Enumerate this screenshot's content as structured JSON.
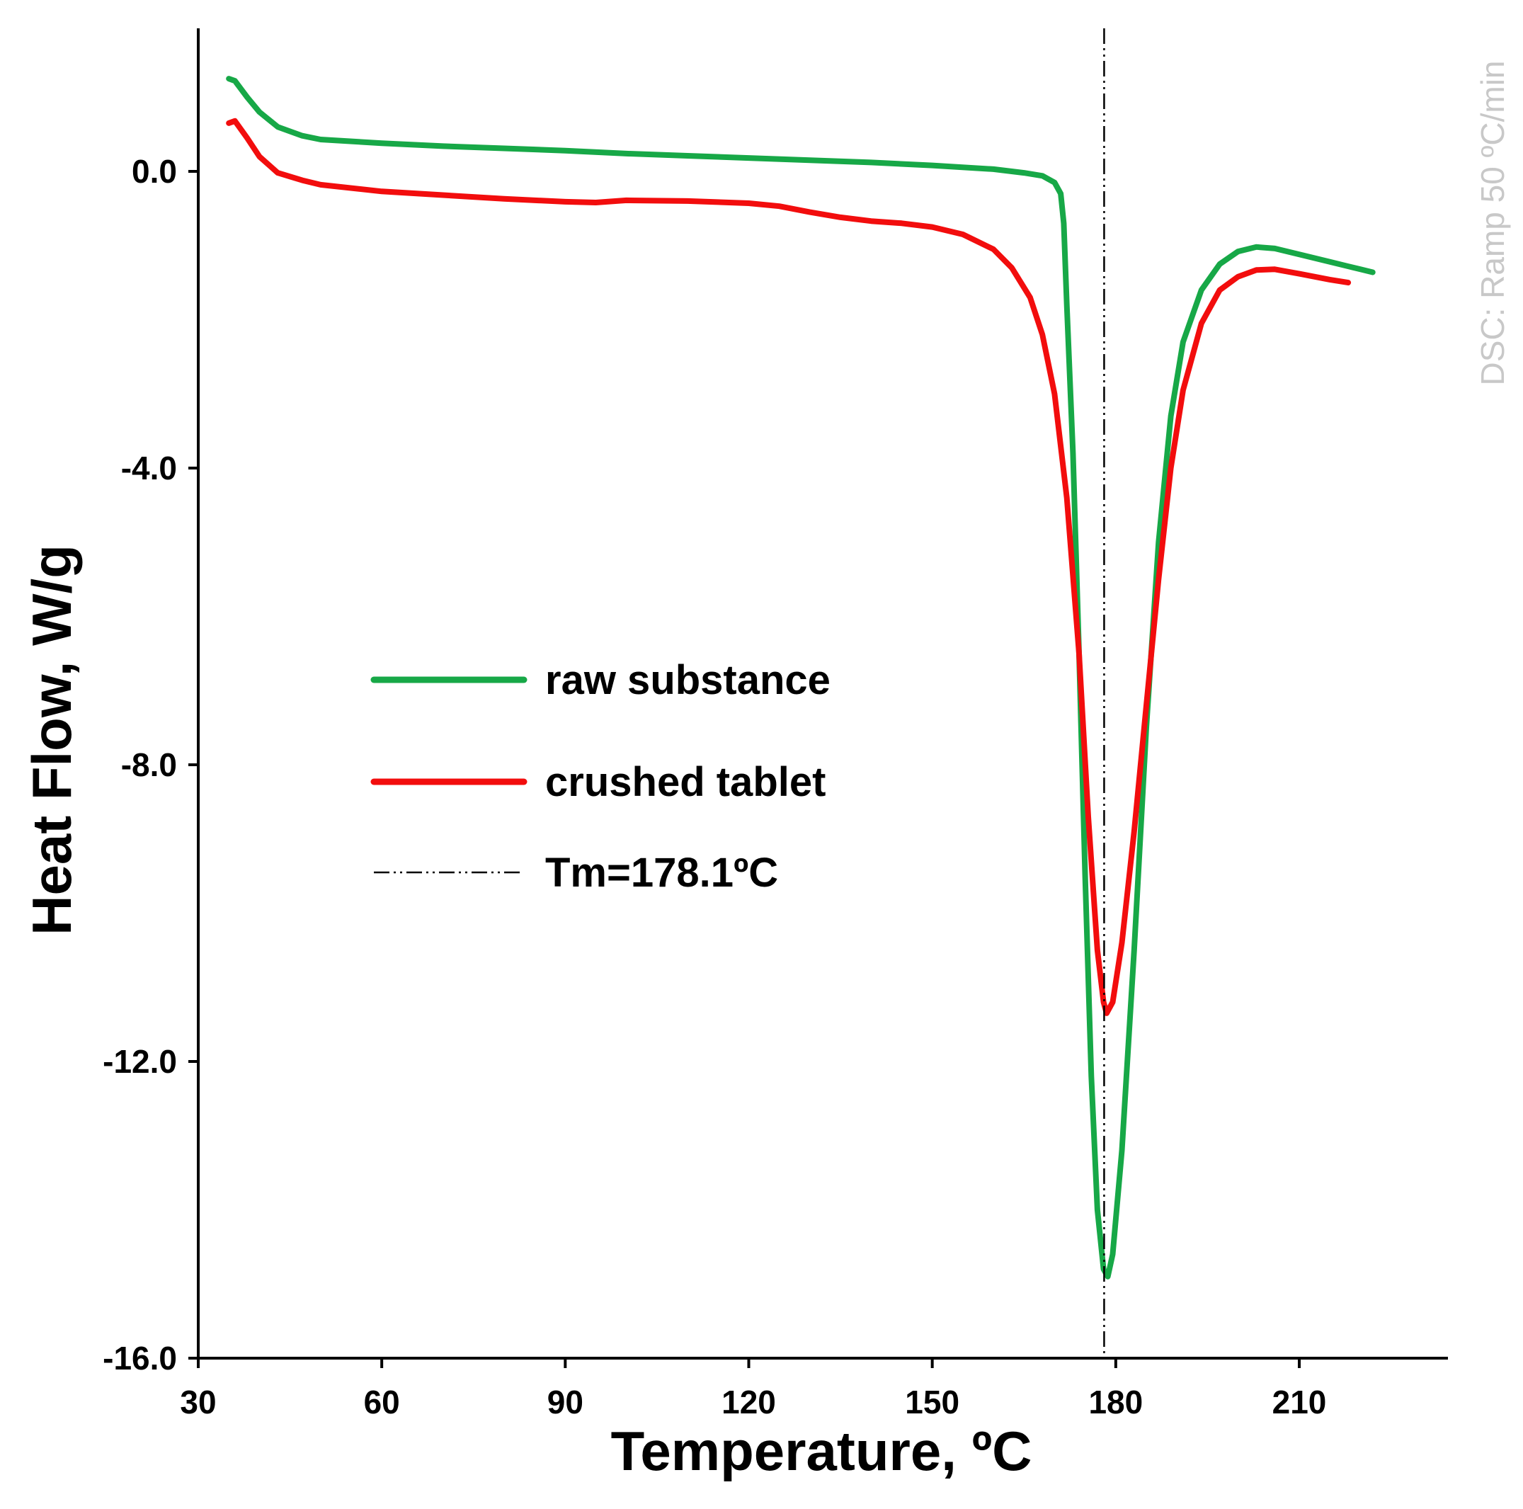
{
  "chart_data": {
    "type": "line",
    "title": "",
    "xlabel": "Temperature, ºC",
    "ylabel": "Heat Flow, W/g",
    "xlim": [
      30,
      230
    ],
    "ylim": [
      -16,
      2
    ],
    "x_ticks": [
      30,
      60,
      90,
      120,
      150,
      180,
      210
    ],
    "x_tick_labels": [
      "30",
      "60",
      "90",
      "120",
      "150",
      "180",
      "210"
    ],
    "y_ticks": [
      0,
      -4,
      -8,
      -12,
      -16
    ],
    "y_tick_labels": [
      "0.0",
      "-4.0",
      "-8.0",
      "-12.0",
      "-16.0"
    ],
    "grid": false,
    "legend_position": "center-left",
    "annotation": "DSC: Ramp 50 ºC/min",
    "series": [
      {
        "name": "raw substance",
        "color": "#17a847",
        "points": [
          [
            35,
            1.25
          ],
          [
            36,
            1.22
          ],
          [
            38,
            1.0
          ],
          [
            40,
            0.8
          ],
          [
            43,
            0.6
          ],
          [
            47,
            0.48
          ],
          [
            50,
            0.43
          ],
          [
            60,
            0.38
          ],
          [
            70,
            0.34
          ],
          [
            80,
            0.31
          ],
          [
            90,
            0.28
          ],
          [
            100,
            0.24
          ],
          [
            110,
            0.21
          ],
          [
            120,
            0.18
          ],
          [
            130,
            0.15
          ],
          [
            140,
            0.12
          ],
          [
            150,
            0.08
          ],
          [
            160,
            0.03
          ],
          [
            165,
            -0.02
          ],
          [
            168,
            -0.06
          ],
          [
            170,
            -0.15
          ],
          [
            171,
            -0.3
          ],
          [
            171.5,
            -0.7
          ],
          [
            172,
            -1.8
          ],
          [
            173,
            -3.8
          ],
          [
            174,
            -6.5
          ],
          [
            175,
            -9.5
          ],
          [
            176,
            -12.2
          ],
          [
            177,
            -14.0
          ],
          [
            178,
            -14.8
          ],
          [
            178.7,
            -14.9
          ],
          [
            179.5,
            -14.6
          ],
          [
            181,
            -13.2
          ],
          [
            183,
            -10.5
          ],
          [
            185,
            -7.5
          ],
          [
            187,
            -5.0
          ],
          [
            189,
            -3.3
          ],
          [
            191,
            -2.3
          ],
          [
            194,
            -1.6
          ],
          [
            197,
            -1.25
          ],
          [
            200,
            -1.08
          ],
          [
            203,
            -1.02
          ],
          [
            206,
            -1.04
          ],
          [
            210,
            -1.12
          ],
          [
            215,
            -1.22
          ],
          [
            220,
            -1.32
          ],
          [
            222,
            -1.36
          ]
        ]
      },
      {
        "name": "crushed tablet",
        "color": "#f20d0d",
        "points": [
          [
            35,
            0.65
          ],
          [
            36,
            0.68
          ],
          [
            38,
            0.45
          ],
          [
            40,
            0.2
          ],
          [
            43,
            -0.02
          ],
          [
            47,
            -0.12
          ],
          [
            50,
            -0.18
          ],
          [
            60,
            -0.27
          ],
          [
            70,
            -0.32
          ],
          [
            80,
            -0.37
          ],
          [
            90,
            -0.41
          ],
          [
            95,
            -0.42
          ],
          [
            100,
            -0.39
          ],
          [
            110,
            -0.4
          ],
          [
            120,
            -0.43
          ],
          [
            125,
            -0.47
          ],
          [
            130,
            -0.55
          ],
          [
            135,
            -0.62
          ],
          [
            140,
            -0.67
          ],
          [
            145,
            -0.7
          ],
          [
            150,
            -0.75
          ],
          [
            155,
            -0.85
          ],
          [
            160,
            -1.05
          ],
          [
            163,
            -1.3
          ],
          [
            166,
            -1.7
          ],
          [
            168,
            -2.2
          ],
          [
            170,
            -3.0
          ],
          [
            172,
            -4.4
          ],
          [
            174,
            -6.5
          ],
          [
            175.5,
            -8.7
          ],
          [
            177,
            -10.5
          ],
          [
            178,
            -11.2
          ],
          [
            178.5,
            -11.35
          ],
          [
            179.5,
            -11.2
          ],
          [
            181,
            -10.4
          ],
          [
            183,
            -8.9
          ],
          [
            185,
            -7.2
          ],
          [
            187,
            -5.5
          ],
          [
            189,
            -4.0
          ],
          [
            191,
            -2.95
          ],
          [
            194,
            -2.05
          ],
          [
            197,
            -1.6
          ],
          [
            200,
            -1.42
          ],
          [
            203,
            -1.33
          ],
          [
            206,
            -1.32
          ],
          [
            210,
            -1.38
          ],
          [
            215,
            -1.46
          ],
          [
            218,
            -1.5
          ]
        ]
      },
      {
        "name": "Tm=178.1ºC",
        "color": "#000000",
        "style": "dash-dot",
        "x": 178.1
      }
    ]
  }
}
